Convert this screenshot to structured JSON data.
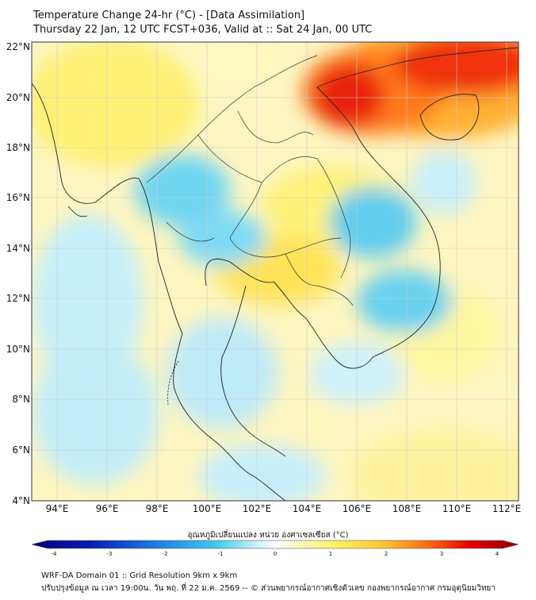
{
  "header": {
    "title": "Temperature Change 24-hr (°C) - [Data Assimilation]",
    "subtitle": "Thursday 22 Jan, 12 UTC FCST+036, Valid at :: Sat 24 Jan, 00 UTC"
  },
  "map": {
    "lat_ticks": [
      "22°N",
      "20°N",
      "18°N",
      "16°N",
      "14°N",
      "12°N",
      "10°N",
      "8°N",
      "6°N",
      "4°N"
    ],
    "lon_ticks": [
      "94°E",
      "96°E",
      "98°E",
      "100°E",
      "102°E",
      "104°E",
      "106°E",
      "108°E",
      "110°E",
      "112°E"
    ],
    "lat_range": [
      4,
      22.2
    ],
    "lon_range": [
      93,
      112.5
    ],
    "grid": true
  },
  "colorbar": {
    "label": "อุณหภูมิเปลี่ยนแปลง หน่วย องศาเซลเซียส (°C)",
    "ticks": [
      "-4",
      "-3",
      "-2",
      "-1",
      "0",
      "1",
      "2",
      "3",
      "4"
    ],
    "range": [
      -4,
      4
    ]
  },
  "footer": {
    "line1": "WRF-DA Domain 01 :: Grid Resolution 9km x 9km",
    "line2": "ปรับปรุงข้อมูล ณ เวลา 19:00น. วัน พฤ. ที่ 22 ม.ค. 2569 -- © ส่วนพยากรณ์อากาศเชิงตัวเลข กองพยากรณ์อากาศ กรมอุตุนิยมวิทยา"
  }
}
